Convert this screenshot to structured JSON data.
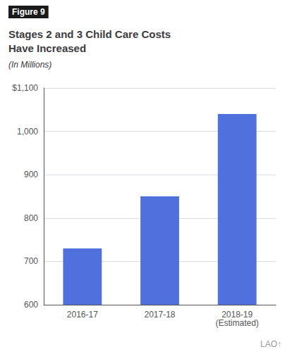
{
  "chart_data": {
    "type": "bar",
    "title": "Stages 2 and 3 Child Care Costs\nHave Increased",
    "subtitle": "(In Millions)",
    "annotations": [
      "Figure 9",
      "LAO↑"
    ],
    "categories": [
      "2016-17",
      "2017-18",
      "2018-19\n(Estimated)"
    ],
    "values": [
      730,
      850,
      1040
    ],
    "ylim": [
      600,
      1100
    ],
    "yticks": [
      600,
      700,
      800,
      900,
      {
        "value": 1000,
        "label": "1,000"
      },
      {
        "value": 1100,
        "label": "$1,100"
      }
    ],
    "grid": true
  }
}
